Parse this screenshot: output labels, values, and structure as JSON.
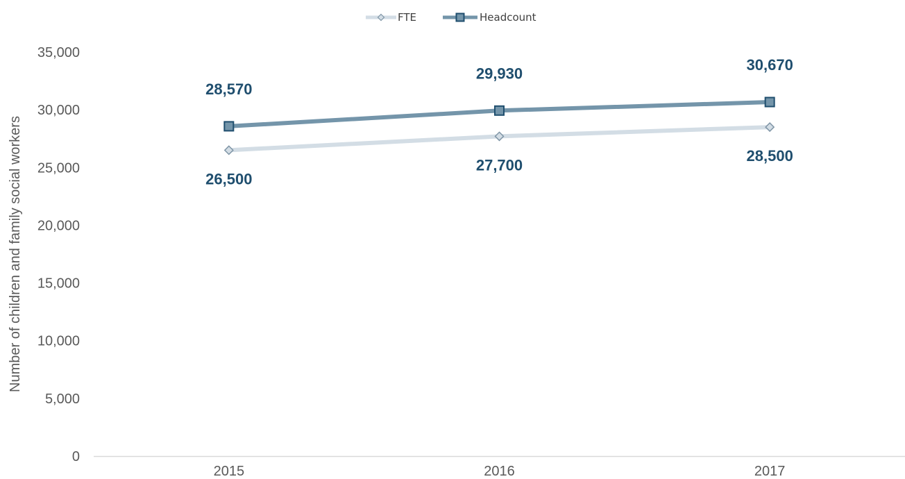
{
  "chart_data": {
    "type": "line",
    "categories": [
      "2015",
      "2016",
      "2017"
    ],
    "series": [
      {
        "name": "FTE",
        "values": [
          26500,
          27700,
          28500
        ],
        "labels": [
          "26,500",
          "27,700",
          "28,500"
        ],
        "color": "#d3dde5",
        "marker": "diamond"
      },
      {
        "name": "Headcount",
        "values": [
          28570,
          29930,
          30670
        ],
        "labels": [
          "28,570",
          "29,930",
          "30,670"
        ],
        "color": "#7495aa",
        "marker": "square"
      }
    ],
    "ylabel": "Number of children and family social workers",
    "xlabel": "",
    "ylim": [
      0,
      35000
    ],
    "yticks": [
      0,
      5000,
      10000,
      15000,
      20000,
      25000,
      30000,
      35000
    ],
    "ytick_labels": [
      "0",
      "5,000",
      "10,000",
      "15,000",
      "20,000",
      "25,000",
      "30,000",
      "35,000"
    ],
    "grid": false,
    "legend_position": "top-center",
    "label_color": "#1f4e6e"
  }
}
